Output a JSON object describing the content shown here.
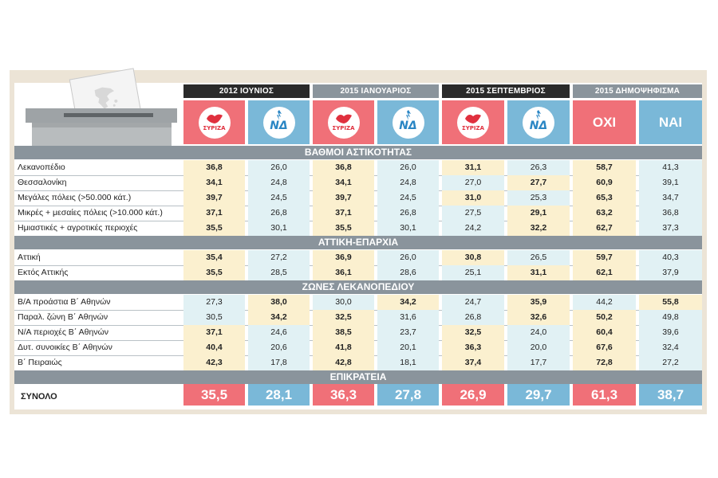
{
  "headers": [
    {
      "label": "2012 ΙΟΥΝΙΟΣ",
      "style": "dark"
    },
    {
      "label": "2015 ΙΑΝΟΥΑΡΙΟΣ",
      "style": "grey"
    },
    {
      "label": "2015 ΣΕΠΤΕΜΒΡΙΟΣ",
      "style": "dark"
    },
    {
      "label": "2015 ΔΗΜΟΨΗΦΙΣΜΑ",
      "style": "grey"
    }
  ],
  "logos": {
    "syriza_text": "ΣΥΡΙΖΑ",
    "nd_text": "ΝΔ",
    "oxi": "ΟΧΙ",
    "nai": "ΝΑΙ"
  },
  "sections": [
    {
      "title": "ΒΑΘΜΟΙ ΑΣΤΙΚΟΤΗΤΑΣ",
      "rows": [
        {
          "label": "Λεκανοπέδιο",
          "values": [
            "36,8",
            "26,0",
            "36,8",
            "26,0",
            "31,1",
            "26,3",
            "58,7",
            "41,3"
          ]
        },
        {
          "label": "Θεσσαλονίκη",
          "values": [
            "34,1",
            "24,8",
            "34,1",
            "24,8",
            "27,0",
            "27,7",
            "60,9",
            "39,1"
          ]
        },
        {
          "label": "Μεγάλες πόλεις (>50.000 κάτ.)",
          "values": [
            "39,7",
            "24,5",
            "39,7",
            "24,5",
            "31,0",
            "25,3",
            "65,3",
            "34,7"
          ]
        },
        {
          "label": "Μικρές + μεσαίες πόλεις (>10.000 κάτ.)",
          "values": [
            "37,1",
            "26,8",
            "37,1",
            "26,8",
            "27,5",
            "29,1",
            "63,2",
            "36,8"
          ]
        },
        {
          "label": "Ημιαστικές + αγροτικές περιοχές",
          "values": [
            "35,5",
            "30,1",
            "35,5",
            "30,1",
            "24,2",
            "32,2",
            "62,7",
            "37,3"
          ]
        }
      ]
    },
    {
      "title": "ΑΤΤΙΚΗ-ΕΠΑΡΧΙΑ",
      "rows": [
        {
          "label": "Αττική",
          "values": [
            "35,4",
            "27,2",
            "36,9",
            "26,0",
            "30,8",
            "26,5",
            "59,7",
            "40,3"
          ]
        },
        {
          "label": "Εκτός Αττικής",
          "values": [
            "35,5",
            "28,5",
            "36,1",
            "28,6",
            "25,1",
            "31,1",
            "62,1",
            "37,9"
          ]
        }
      ]
    },
    {
      "title": "ΖΩΝΕΣ ΛΕΚΑΝΟΠΕΔΙΟΥ",
      "rows": [
        {
          "label": "Β/Α προάστια Β΄ Αθηνών",
          "values": [
            "27,3",
            "38,0",
            "30,0",
            "34,2",
            "24,7",
            "35,9",
            "44,2",
            "55,8"
          ]
        },
        {
          "label": "Παραλ. ζώνη Β΄ Αθηνών",
          "values": [
            "30,5",
            "34,2",
            "32,5",
            "31,6",
            "26,8",
            "32,6",
            "50,2",
            "49,8"
          ]
        },
        {
          "label": "Ν/Α περιοχές Β΄ Αθηνών",
          "values": [
            "37,1",
            "24,6",
            "38,5",
            "23,7",
            "32,5",
            "24,0",
            "60,4",
            "39,6"
          ]
        },
        {
          "label": "Δυτ. συνοικίες Β΄ Αθηνών",
          "values": [
            "40,4",
            "20,6",
            "41,8",
            "20,1",
            "36,3",
            "20,0",
            "67,6",
            "32,4"
          ]
        },
        {
          "label": "Β΄ Πειραιώς",
          "values": [
            "42,3",
            "17,8",
            "42,8",
            "18,1",
            "37,4",
            "17,7",
            "72,8",
            "27,2"
          ]
        }
      ]
    },
    {
      "title": "ΕΠΙΚΡΑΤΕΙΑ",
      "rows": []
    }
  ],
  "total": {
    "label": "ΣΥΝΟΛΟ",
    "values": [
      "35,5",
      "28,1",
      "36,3",
      "27,8",
      "26,9",
      "29,7",
      "61,3",
      "38,7"
    ]
  },
  "colors": {
    "red": "#f07078",
    "blue": "#7ab8d8",
    "winner_bg": "#fbf0cf",
    "loser_bg": "#e1f1f4",
    "section_bg": "#8a949c"
  }
}
